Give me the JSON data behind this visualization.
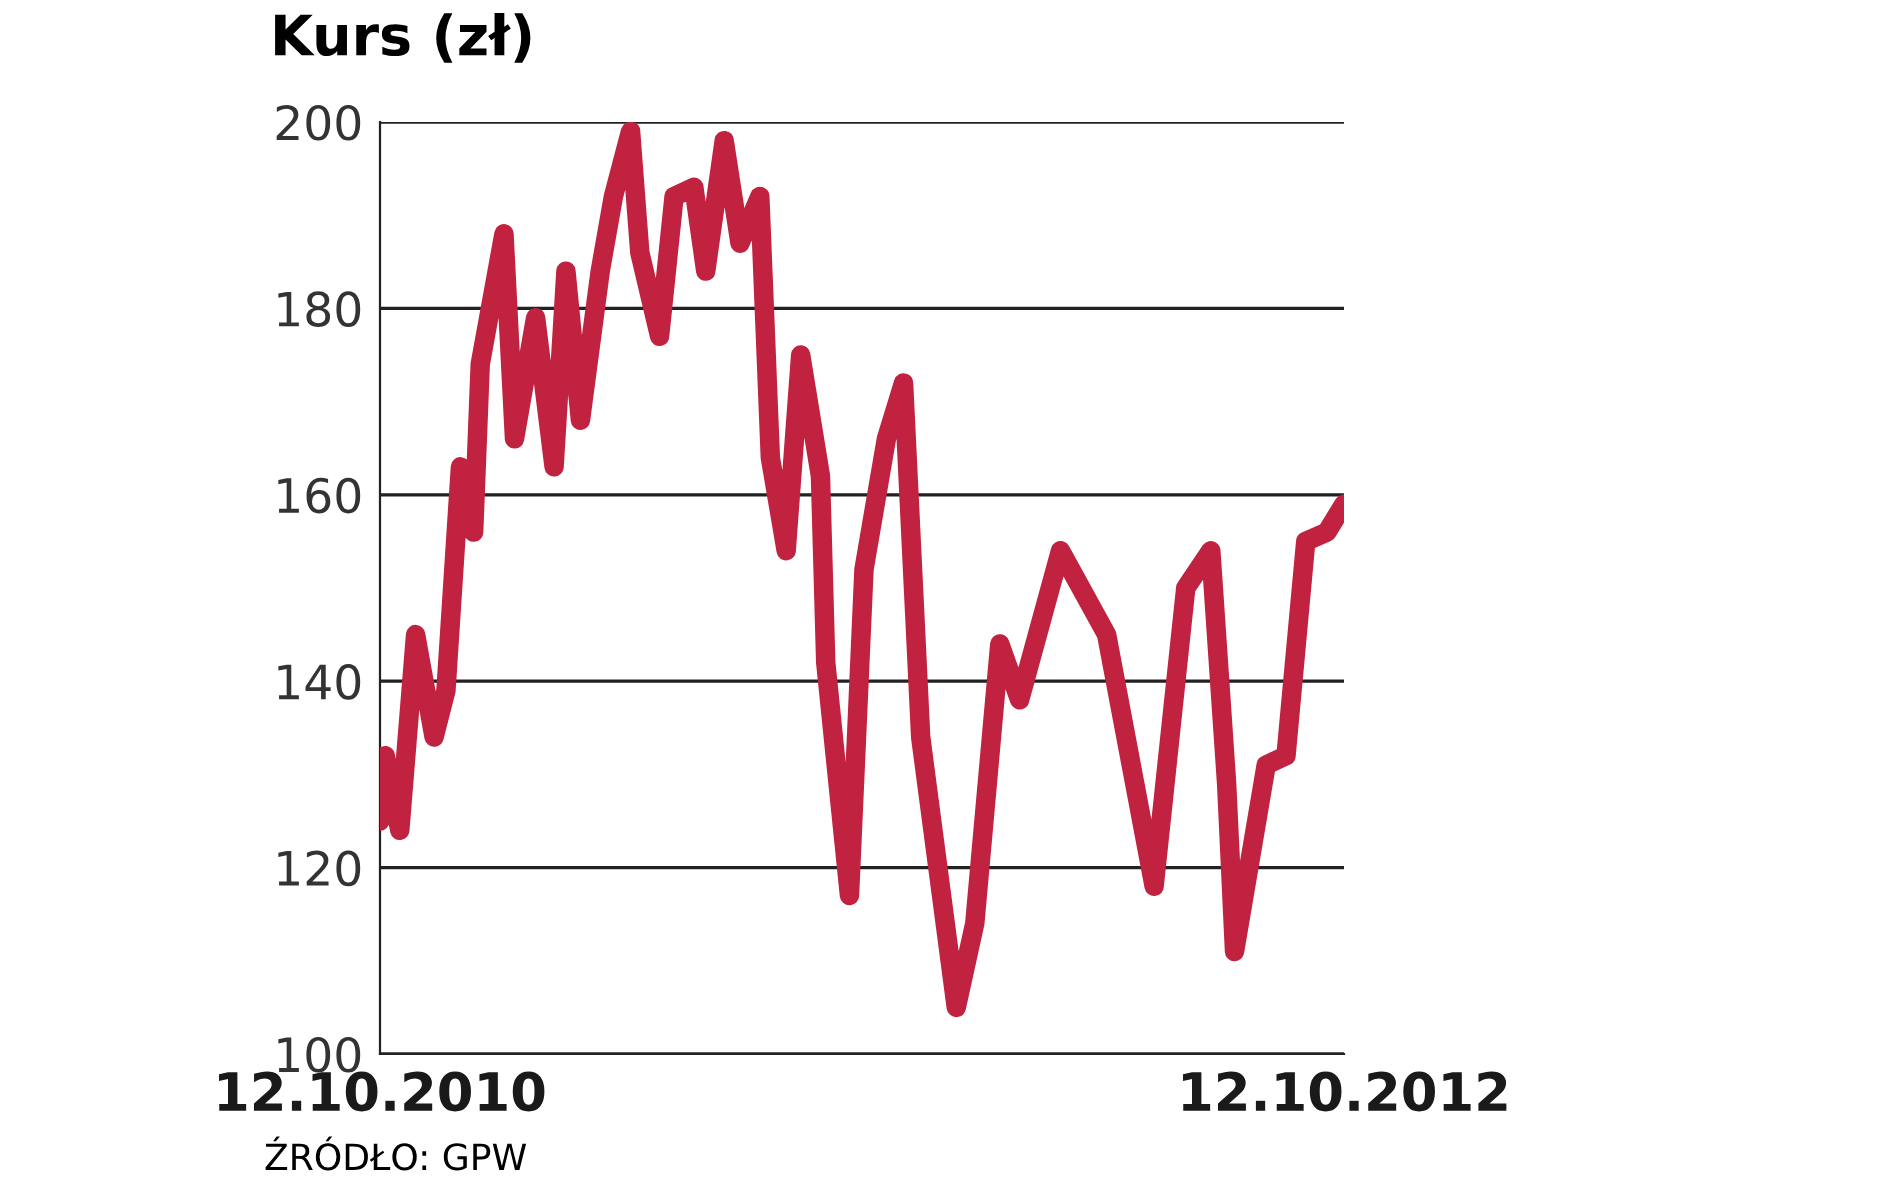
{
  "chart_data": {
    "type": "line",
    "title": "Kurs (zł)",
    "annotations": [
      "ŹRÓDŁO: GPW"
    ],
    "x": [
      "2010-10-12",
      "2010-10-16",
      "2010-10-27",
      "2010-11-08",
      "2010-11-22",
      "2010-12-01",
      "2010-12-12",
      "2010-12-22",
      "2010-12-27",
      "2011-01-14",
      "2011-01-22",
      "2011-02-07",
      "2011-02-21",
      "2011-03-02",
      "2011-03-13",
      "2011-03-28",
      "2011-04-07",
      "2011-04-20",
      "2011-04-27",
      "2011-05-12",
      "2011-05-23",
      "2011-06-07",
      "2011-06-16",
      "2011-06-30",
      "2011-07-12",
      "2011-07-27",
      "2011-08-04",
      "2011-08-16",
      "2011-08-27",
      "2011-09-11",
      "2011-09-15",
      "2011-10-03",
      "2011-10-14",
      "2011-10-31",
      "2011-11-13",
      "2011-11-26",
      "2011-12-23",
      "2012-01-06",
      "2012-01-25",
      "2012-02-09",
      "2012-03-11",
      "2012-04-15",
      "2012-05-21",
      "2012-06-14",
      "2012-07-03",
      "2012-07-15",
      "2012-07-21",
      "2012-08-14",
      "2012-08-29",
      "2012-09-13",
      "2012-09-29",
      "2012-10-12"
    ],
    "series": [
      {
        "color": "#c0223f",
        "values": [
          125,
          132,
          124,
          145,
          134,
          139,
          163,
          156,
          174,
          188,
          166,
          179,
          163,
          184,
          168,
          184,
          192,
          199,
          186,
          177,
          192,
          193,
          184,
          198,
          187,
          192,
          164,
          154,
          175,
          162,
          142,
          117,
          152,
          166,
          172,
          134,
          105,
          114,
          144,
          138,
          154,
          145,
          118,
          150,
          154,
          129,
          111,
          131,
          132,
          155,
          156,
          159
        ]
      }
    ],
    "xlim": [
      "2010-10-12",
      "2012-10-12"
    ],
    "xticks": [
      {
        "value": "2010-10-12",
        "label": "12.10.2010"
      },
      {
        "value": "2012-10-12",
        "label": "12.10.2012"
      }
    ],
    "ylim": [
      100,
      200
    ],
    "yticks": [
      100,
      120,
      140,
      160,
      180,
      200
    ],
    "grid": "y",
    "marker": "none",
    "line_style": "solid"
  }
}
